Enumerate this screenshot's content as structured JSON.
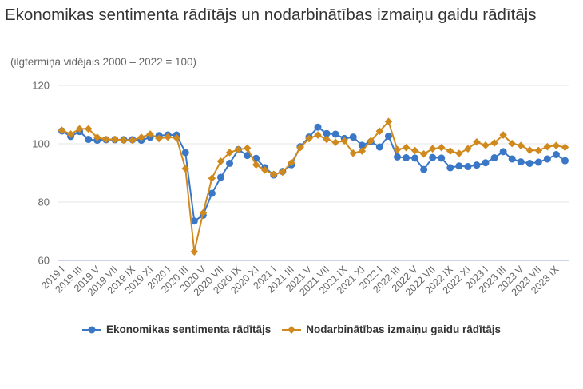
{
  "title": " Ekonomikas sentimenta rādītājs un nodarbinātības izmaiņu gaidu rādītājs",
  "subtitle": "(ilgtermiņa vidējais 2000 – 2022 = 100)",
  "colors": {
    "series1": "#3a77c6",
    "series2": "#d0891c",
    "grid": "#e6e6e6",
    "axis_text": "#666666"
  },
  "chart_data": {
    "type": "line",
    "title": " Ekonomikas sentimenta rādītājs un nodarbinātības izmaiņu gaidu rādītājs",
    "subtitle": "(ilgtermiņa vidējais 2000 – 2022 = 100)",
    "xlabel": "",
    "ylabel": "",
    "ylim": [
      60,
      120
    ],
    "yticks": [
      60,
      80,
      100,
      120
    ],
    "grid": true,
    "legend_position": "bottom",
    "x_tick_labels": [
      "2019 I",
      "2019 III",
      "2019 V",
      "2019 VII",
      "2019 IX",
      "2019 XI",
      "2020 I",
      "2020 III",
      "2020 V",
      "2020 VII",
      "2020 IX",
      "2020 XI",
      "2021 I",
      "2021 III",
      "2021 V",
      "2021 VII",
      "2021 IX",
      "2021 XI",
      "2022 I",
      "2022 III",
      "2022 V",
      "2022 VII",
      "2022 IX",
      "2022 XI",
      "2023 I",
      "2023 III",
      "2023 V",
      "2023 VII",
      "2023 IX"
    ],
    "x": [
      "2019 I",
      "2019 II",
      "2019 III",
      "2019 IV",
      "2019 V",
      "2019 VI",
      "2019 VII",
      "2019 VIII",
      "2019 IX",
      "2019 X",
      "2019 XI",
      "2019 XII",
      "2020 I",
      "2020 II",
      "2020 III",
      "2020 IV",
      "2020 V",
      "2020 VI",
      "2020 VII",
      "2020 VIII",
      "2020 IX",
      "2020 X",
      "2020 XI",
      "2020 XII",
      "2021 I",
      "2021 II",
      "2021 III",
      "2021 IV",
      "2021 V",
      "2021 VI",
      "2021 VII",
      "2021 VIII",
      "2021 IX",
      "2021 X",
      "2021 XI",
      "2021 XII",
      "2022 I",
      "2022 II",
      "2022 III",
      "2022 IV",
      "2022 V",
      "2022 VI",
      "2022 VII",
      "2022 VIII",
      "2022 IX",
      "2022 X",
      "2022 XI",
      "2022 XII",
      "2023 I",
      "2023 II",
      "2023 III",
      "2023 IV",
      "2023 V",
      "2023 VI",
      "2023 VII",
      "2023 VIII",
      "2023 IX",
      "2023 X"
    ],
    "series": [
      {
        "name": "Ekonomikas sentimenta rādītājs",
        "marker": "circle",
        "values": [
          104.4,
          102.5,
          104.2,
          101.5,
          101.2,
          101.4,
          101.4,
          101.4,
          101.4,
          101.2,
          102.2,
          102.8,
          103.0,
          103.0,
          97.0,
          73.5,
          75.5,
          83.0,
          88.5,
          93.3,
          98.0,
          96.0,
          95.0,
          91.8,
          89.3,
          90.5,
          92.8,
          99.0,
          102.3,
          105.7,
          103.5,
          103.3,
          101.8,
          102.3,
          99.5,
          100.7,
          98.9,
          102.6,
          95.5,
          95.2,
          95.1,
          91.2,
          95.3,
          95.1,
          91.8,
          92.4,
          92.2,
          92.7,
          93.5,
          95.2,
          97.3,
          94.8,
          93.8,
          93.3,
          93.7,
          94.8,
          96.3,
          94.2
        ]
      },
      {
        "name": "Nodarbinātības izmaiņu gaidu rādītājs",
        "marker": "diamond",
        "values": [
          104.6,
          103.3,
          105.1,
          105.1,
          102.2,
          101.5,
          101.5,
          101.2,
          101.2,
          102.2,
          103.3,
          101.8,
          102.3,
          102.0,
          91.5,
          63.0,
          76.3,
          88.2,
          94.0,
          97.0,
          98.0,
          98.5,
          92.8,
          91.0,
          89.5,
          90.3,
          93.5,
          98.7,
          101.8,
          103.0,
          101.5,
          100.5,
          101.0,
          96.8,
          97.5,
          101.0,
          104.3,
          107.6,
          98.0,
          98.7,
          97.7,
          96.5,
          98.3,
          98.7,
          97.5,
          96.7,
          98.3,
          100.6,
          99.5,
          100.3,
          103.0,
          100.1,
          99.4,
          97.8,
          97.7,
          99.0,
          99.4,
          98.8
        ]
      }
    ]
  }
}
